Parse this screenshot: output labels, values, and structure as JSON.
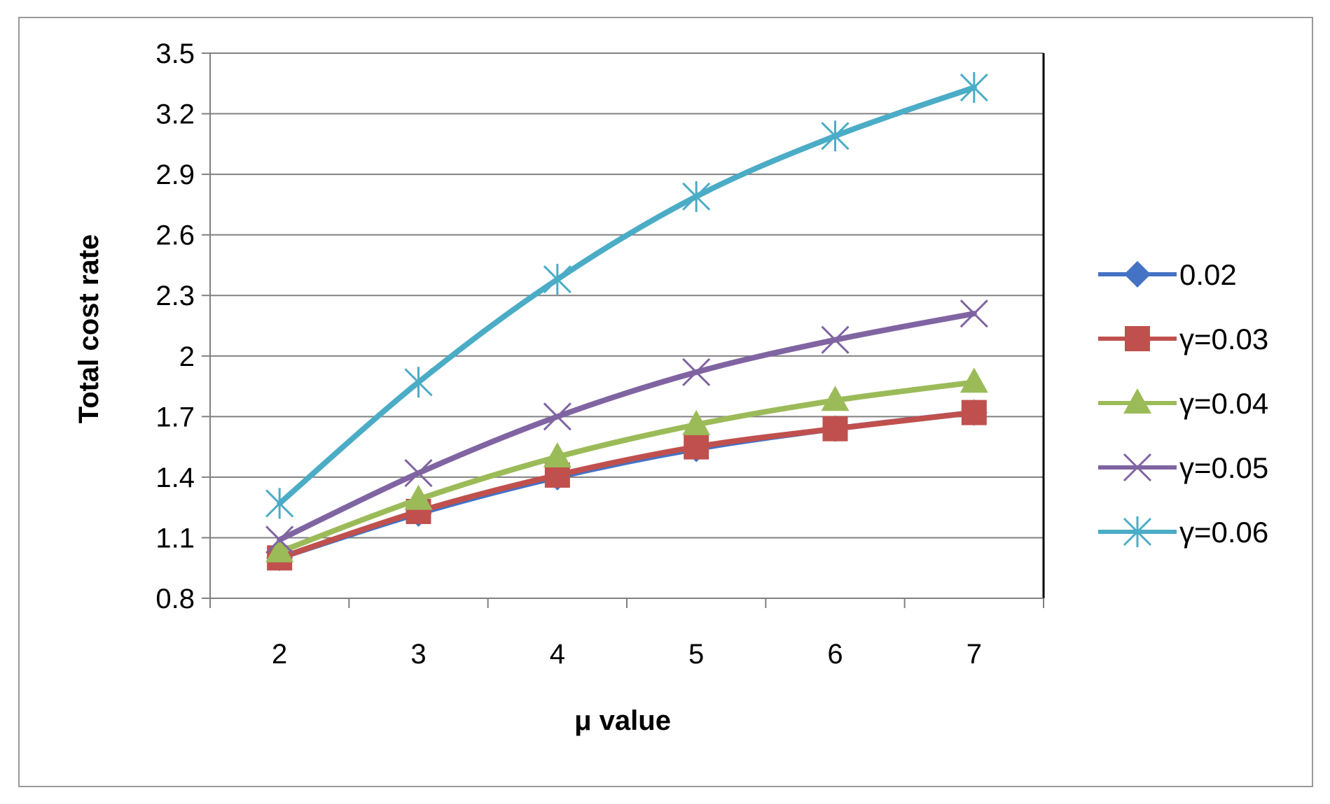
{
  "chart_data": {
    "type": "line",
    "title": "",
    "xlabel": "μ value",
    "ylabel": "Total cost  rate",
    "categories": [
      "2",
      "3",
      "4",
      "5",
      "6",
      "7"
    ],
    "yticks": [
      "0.8",
      "1.1",
      "1.4",
      "1.7",
      "2",
      "2.3",
      "2.6",
      "2.9",
      "3.2",
      "3.5"
    ],
    "ylim": [
      0.8,
      3.5
    ],
    "grid": true,
    "legend_position": "right",
    "series": [
      {
        "name": "0.02",
        "marker": "diamond",
        "color": "#4472C4",
        "values": [
          1.0,
          1.22,
          1.4,
          1.54,
          1.64,
          1.72
        ]
      },
      {
        "name": "γ=0.03",
        "marker": "square",
        "color": "#C0504D",
        "values": [
          1.0,
          1.23,
          1.41,
          1.55,
          1.64,
          1.72
        ]
      },
      {
        "name": "γ=0.04",
        "marker": "triangle",
        "color": "#9BBB59",
        "values": [
          1.03,
          1.29,
          1.5,
          1.66,
          1.78,
          1.87
        ]
      },
      {
        "name": "γ=0.05",
        "marker": "x",
        "color": "#8064A2",
        "values": [
          1.09,
          1.42,
          1.7,
          1.92,
          2.08,
          2.21
        ]
      },
      {
        "name": "γ=0.06",
        "marker": "star",
        "color": "#4BACC6",
        "values": [
          1.27,
          1.87,
          2.38,
          2.79,
          3.09,
          3.33
        ]
      }
    ]
  }
}
